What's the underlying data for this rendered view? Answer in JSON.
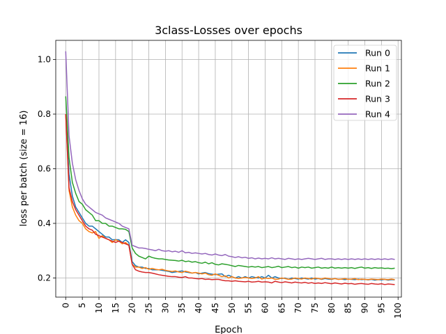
{
  "chart_data": {
    "type": "line",
    "title": "3class-Losses over epochs",
    "xlabel": "Epoch",
    "ylabel": "loss per batch (size = 16)",
    "xlim": [
      -3,
      101
    ],
    "ylim": [
      0.13,
      1.07
    ],
    "xticks": [
      0,
      5,
      10,
      15,
      20,
      25,
      30,
      35,
      40,
      45,
      50,
      55,
      60,
      65,
      70,
      75,
      80,
      85,
      90,
      95,
      100
    ],
    "yticks": [
      0.2,
      0.4,
      0.6,
      0.8,
      1.0
    ],
    "ytick_labels": [
      "0.2",
      "0.4",
      "0.6",
      "0.8",
      "1.0"
    ],
    "grid": true,
    "legend_position": "top-right",
    "series": [
      {
        "name": "Run 0",
        "color": "#1f77b4",
        "values": [
          0.8,
          0.58,
          0.5,
          0.46,
          0.44,
          0.42,
          0.4,
          0.39,
          0.39,
          0.38,
          0.37,
          0.36,
          0.35,
          0.35,
          0.34,
          0.34,
          0.34,
          0.33,
          0.34,
          0.33,
          0.26,
          0.245,
          0.24,
          0.24,
          0.235,
          0.235,
          0.23,
          0.23,
          0.23,
          0.228,
          0.226,
          0.224,
          0.22,
          0.222,
          0.224,
          0.226,
          0.222,
          0.22,
          0.218,
          0.22,
          0.215,
          0.218,
          0.22,
          0.216,
          0.214,
          0.212,
          0.214,
          0.215,
          0.205,
          0.21,
          0.205,
          0.2,
          0.205,
          0.2,
          0.205,
          0.2,
          0.205,
          0.202,
          0.2,
          0.205,
          0.2,
          0.21,
          0.2,
          0.205,
          0.2,
          0.198,
          0.2,
          0.195,
          0.2,
          0.198,
          0.196,
          0.2,
          0.198,
          0.196,
          0.2,
          0.196,
          0.198,
          0.195,
          0.198,
          0.196,
          0.195,
          0.198,
          0.195,
          0.196,
          0.194,
          0.196,
          0.195,
          0.194,
          0.196,
          0.194,
          0.195,
          0.193,
          0.195,
          0.192,
          0.194,
          0.193,
          0.195,
          0.192,
          0.194,
          0.193
        ]
      },
      {
        "name": "Run 1",
        "color": "#ff7f0e",
        "values": [
          0.8,
          0.52,
          0.46,
          0.43,
          0.41,
          0.4,
          0.38,
          0.37,
          0.365,
          0.37,
          0.345,
          0.355,
          0.345,
          0.34,
          0.33,
          0.34,
          0.335,
          0.325,
          0.33,
          0.32,
          0.25,
          0.24,
          0.24,
          0.235,
          0.238,
          0.232,
          0.235,
          0.232,
          0.23,
          0.232,
          0.228,
          0.226,
          0.224,
          0.226,
          0.222,
          0.22,
          0.225,
          0.222,
          0.218,
          0.22,
          0.218,
          0.215,
          0.218,
          0.212,
          0.21,
          0.215,
          0.21,
          0.205,
          0.208,
          0.2,
          0.205,
          0.2,
          0.198,
          0.2,
          0.202,
          0.2,
          0.198,
          0.2,
          0.205,
          0.196,
          0.2,
          0.198,
          0.2,
          0.195,
          0.196,
          0.2,
          0.198,
          0.195,
          0.196,
          0.2,
          0.198,
          0.196,
          0.2,
          0.198,
          0.196,
          0.2,
          0.198,
          0.196,
          0.2,
          0.198,
          0.196,
          0.198,
          0.195,
          0.196,
          0.198,
          0.195,
          0.196,
          0.198,
          0.194,
          0.196,
          0.195,
          0.194,
          0.196,
          0.195,
          0.194,
          0.196,
          0.195,
          0.194,
          0.196,
          0.194
        ]
      },
      {
        "name": "Run 2",
        "color": "#2ca02c",
        "values": [
          0.865,
          0.64,
          0.55,
          0.51,
          0.48,
          0.47,
          0.45,
          0.44,
          0.43,
          0.41,
          0.41,
          0.4,
          0.4,
          0.39,
          0.39,
          0.385,
          0.38,
          0.38,
          0.378,
          0.37,
          0.31,
          0.29,
          0.28,
          0.275,
          0.27,
          0.28,
          0.275,
          0.272,
          0.27,
          0.27,
          0.268,
          0.266,
          0.265,
          0.264,
          0.262,
          0.265,
          0.26,
          0.262,
          0.258,
          0.26,
          0.256,
          0.254,
          0.258,
          0.252,
          0.256,
          0.25,
          0.248,
          0.252,
          0.25,
          0.248,
          0.245,
          0.242,
          0.246,
          0.244,
          0.242,
          0.24,
          0.242,
          0.24,
          0.242,
          0.238,
          0.24,
          0.242,
          0.238,
          0.24,
          0.243,
          0.238,
          0.24,
          0.242,
          0.238,
          0.24,
          0.236,
          0.24,
          0.238,
          0.24,
          0.236,
          0.238,
          0.24,
          0.236,
          0.238,
          0.236,
          0.24,
          0.236,
          0.238,
          0.236,
          0.238,
          0.236,
          0.238,
          0.235,
          0.238,
          0.24,
          0.236,
          0.238,
          0.235,
          0.238,
          0.236,
          0.237,
          0.235,
          0.236,
          0.234,
          0.236
        ]
      },
      {
        "name": "Run 3",
        "color": "#d62728",
        "values": [
          0.8,
          0.53,
          0.48,
          0.45,
          0.43,
          0.41,
          0.39,
          0.38,
          0.375,
          0.36,
          0.355,
          0.35,
          0.345,
          0.34,
          0.335,
          0.33,
          0.335,
          0.33,
          0.325,
          0.32,
          0.25,
          0.23,
          0.225,
          0.222,
          0.22,
          0.22,
          0.218,
          0.215,
          0.212,
          0.21,
          0.208,
          0.206,
          0.205,
          0.205,
          0.203,
          0.202,
          0.205,
          0.2,
          0.2,
          0.198,
          0.197,
          0.198,
          0.195,
          0.196,
          0.194,
          0.195,
          0.195,
          0.192,
          0.19,
          0.19,
          0.188,
          0.19,
          0.188,
          0.187,
          0.186,
          0.188,
          0.185,
          0.186,
          0.188,
          0.185,
          0.186,
          0.185,
          0.182,
          0.188,
          0.185,
          0.183,
          0.186,
          0.184,
          0.182,
          0.185,
          0.183,
          0.182,
          0.184,
          0.181,
          0.183,
          0.18,
          0.182,
          0.18,
          0.183,
          0.181,
          0.179,
          0.182,
          0.18,
          0.178,
          0.181,
          0.179,
          0.18,
          0.177,
          0.179,
          0.18,
          0.178,
          0.177,
          0.18,
          0.178,
          0.177,
          0.179,
          0.176,
          0.178,
          0.177,
          0.176
        ]
      },
      {
        "name": "Run 4",
        "color": "#9467bd",
        "values": [
          1.03,
          0.72,
          0.62,
          0.56,
          0.52,
          0.49,
          0.47,
          0.46,
          0.45,
          0.44,
          0.435,
          0.43,
          0.42,
          0.415,
          0.41,
          0.405,
          0.4,
          0.39,
          0.385,
          0.38,
          0.32,
          0.315,
          0.31,
          0.31,
          0.308,
          0.305,
          0.303,
          0.3,
          0.305,
          0.3,
          0.298,
          0.3,
          0.296,
          0.298,
          0.294,
          0.3,
          0.292,
          0.294,
          0.29,
          0.292,
          0.29,
          0.288,
          0.29,
          0.286,
          0.284,
          0.288,
          0.284,
          0.282,
          0.286,
          0.28,
          0.278,
          0.275,
          0.278,
          0.274,
          0.276,
          0.272,
          0.274,
          0.27,
          0.273,
          0.27,
          0.272,
          0.27,
          0.274,
          0.27,
          0.272,
          0.27,
          0.268,
          0.272,
          0.27,
          0.268,
          0.27,
          0.268,
          0.27,
          0.272,
          0.27,
          0.268,
          0.27,
          0.272,
          0.268,
          0.27,
          0.27,
          0.268,
          0.27,
          0.268,
          0.27,
          0.268,
          0.27,
          0.268,
          0.27,
          0.268,
          0.27,
          0.268,
          0.27,
          0.268,
          0.27,
          0.268,
          0.27,
          0.268,
          0.27,
          0.268
        ]
      }
    ]
  }
}
